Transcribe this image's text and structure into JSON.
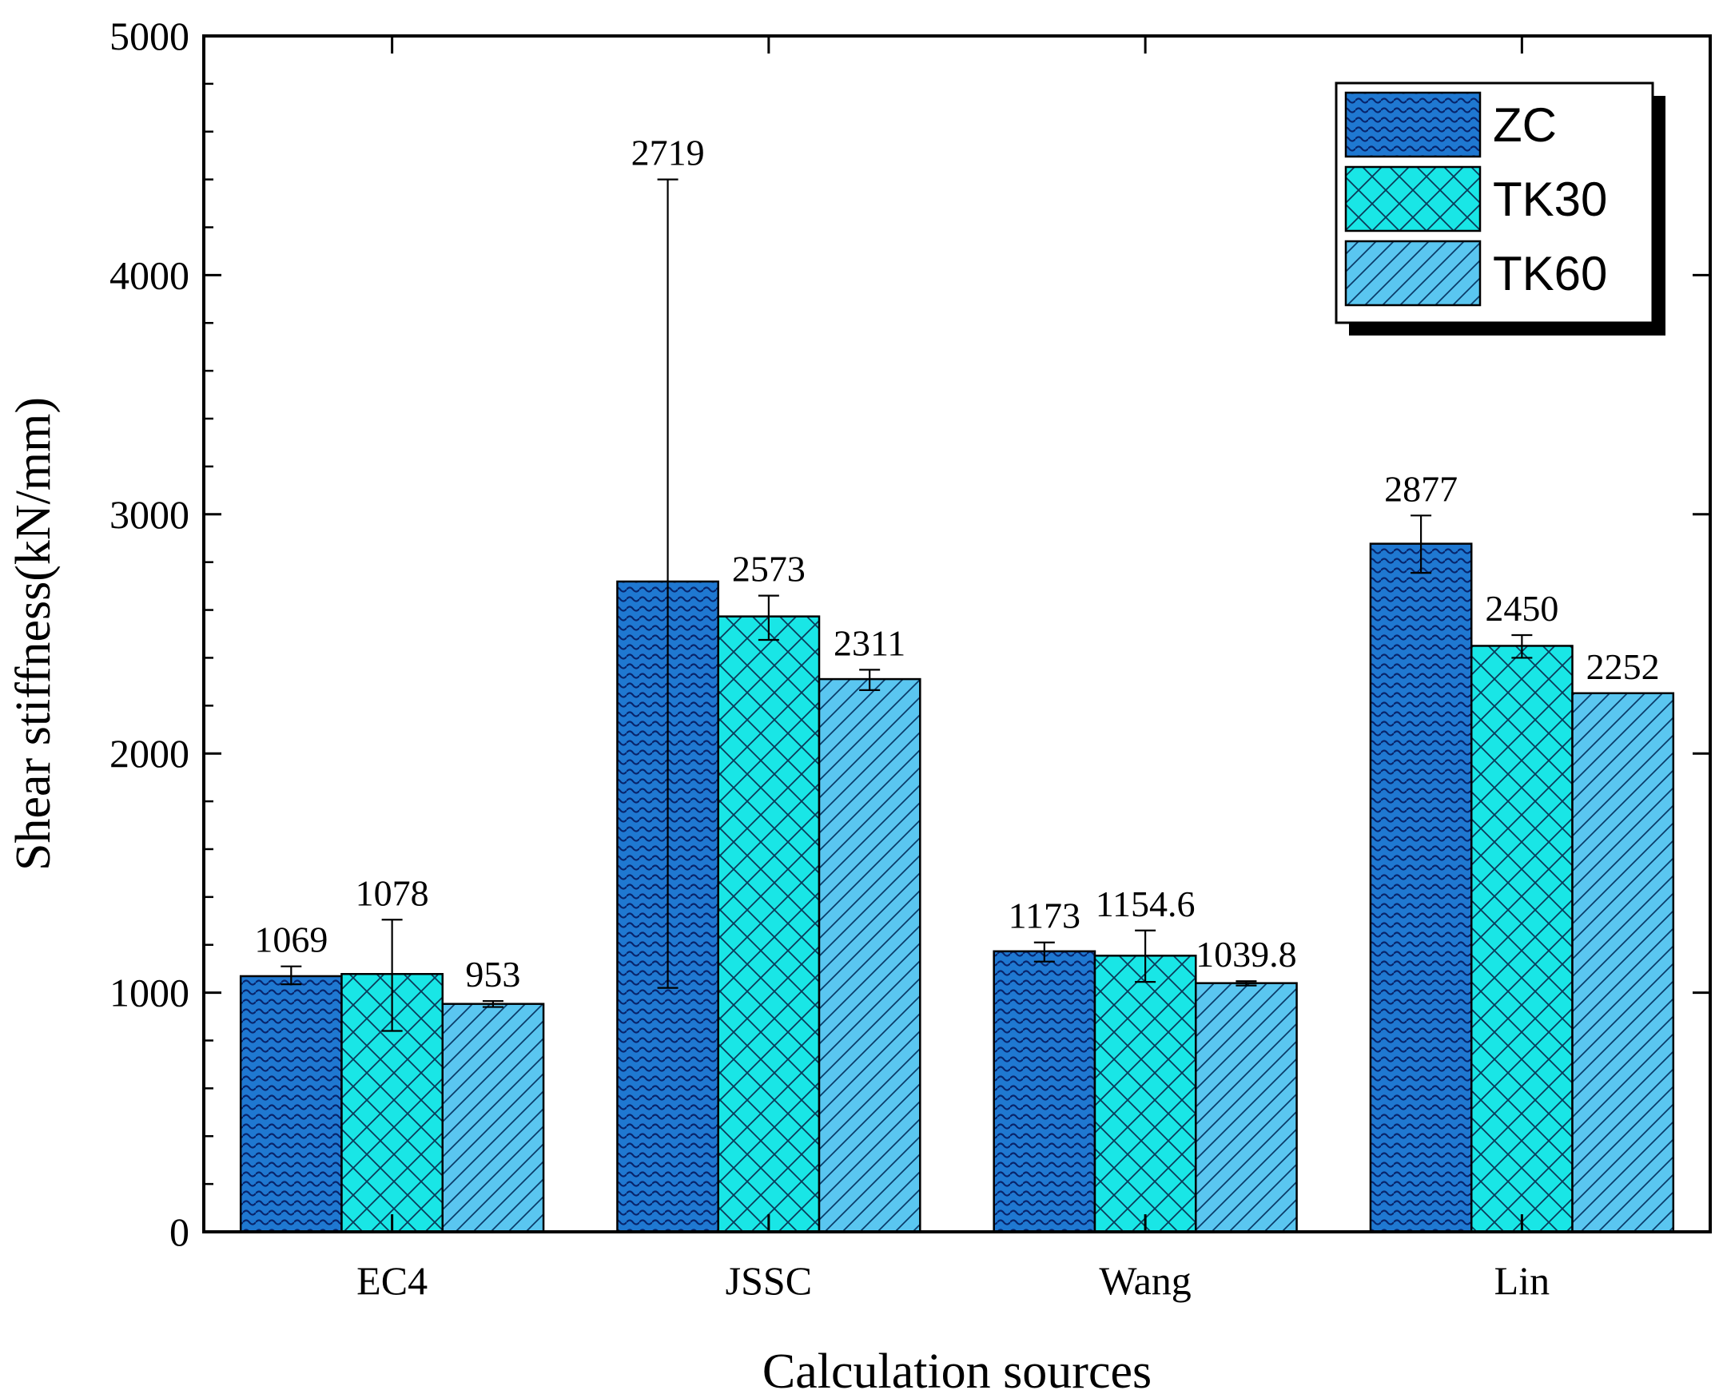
{
  "chart_data": {
    "type": "bar",
    "title": "",
    "xlabel": "Calculation sources",
    "ylabel": "Shear stiffness(kN/mm)",
    "categories": [
      "EC4",
      "JSSC",
      "Wang",
      "Lin"
    ],
    "ylim": [
      0,
      5000
    ],
    "yticks": [
      0,
      1000,
      2000,
      3000,
      4000,
      5000
    ],
    "grid": false,
    "legend_position": "top-right",
    "series": [
      {
        "name": "ZC",
        "color": "#1f78d1",
        "pattern": "waves",
        "values": [
          1069,
          2719,
          1173,
          2877
        ],
        "labels": [
          "1069",
          "2719",
          "1173",
          "2877"
        ],
        "err_low": [
          1035,
          1020,
          1130,
          2755
        ],
        "err_high": [
          1110,
          4400,
          1210,
          2995
        ]
      },
      {
        "name": "TK30",
        "color": "#19e6e6",
        "pattern": "crosshatch",
        "values": [
          1078,
          2573,
          1154.6,
          2450
        ],
        "labels": [
          "1078",
          "2573",
          "1154.6",
          "2450"
        ],
        "err_low": [
          840,
          2475,
          1045,
          2400
        ],
        "err_high": [
          1305,
          2660,
          1260,
          2495
        ]
      },
      {
        "name": "TK60",
        "color": "#5ac6f0",
        "pattern": "diagonal",
        "values": [
          953,
          2311,
          1039.8,
          2252
        ],
        "labels": [
          "953",
          "2311",
          "1039.8",
          "2252"
        ],
        "err_low": [
          940,
          2265,
          1030,
          null
        ],
        "err_high": [
          965,
          2350,
          1048,
          null
        ]
      }
    ]
  }
}
